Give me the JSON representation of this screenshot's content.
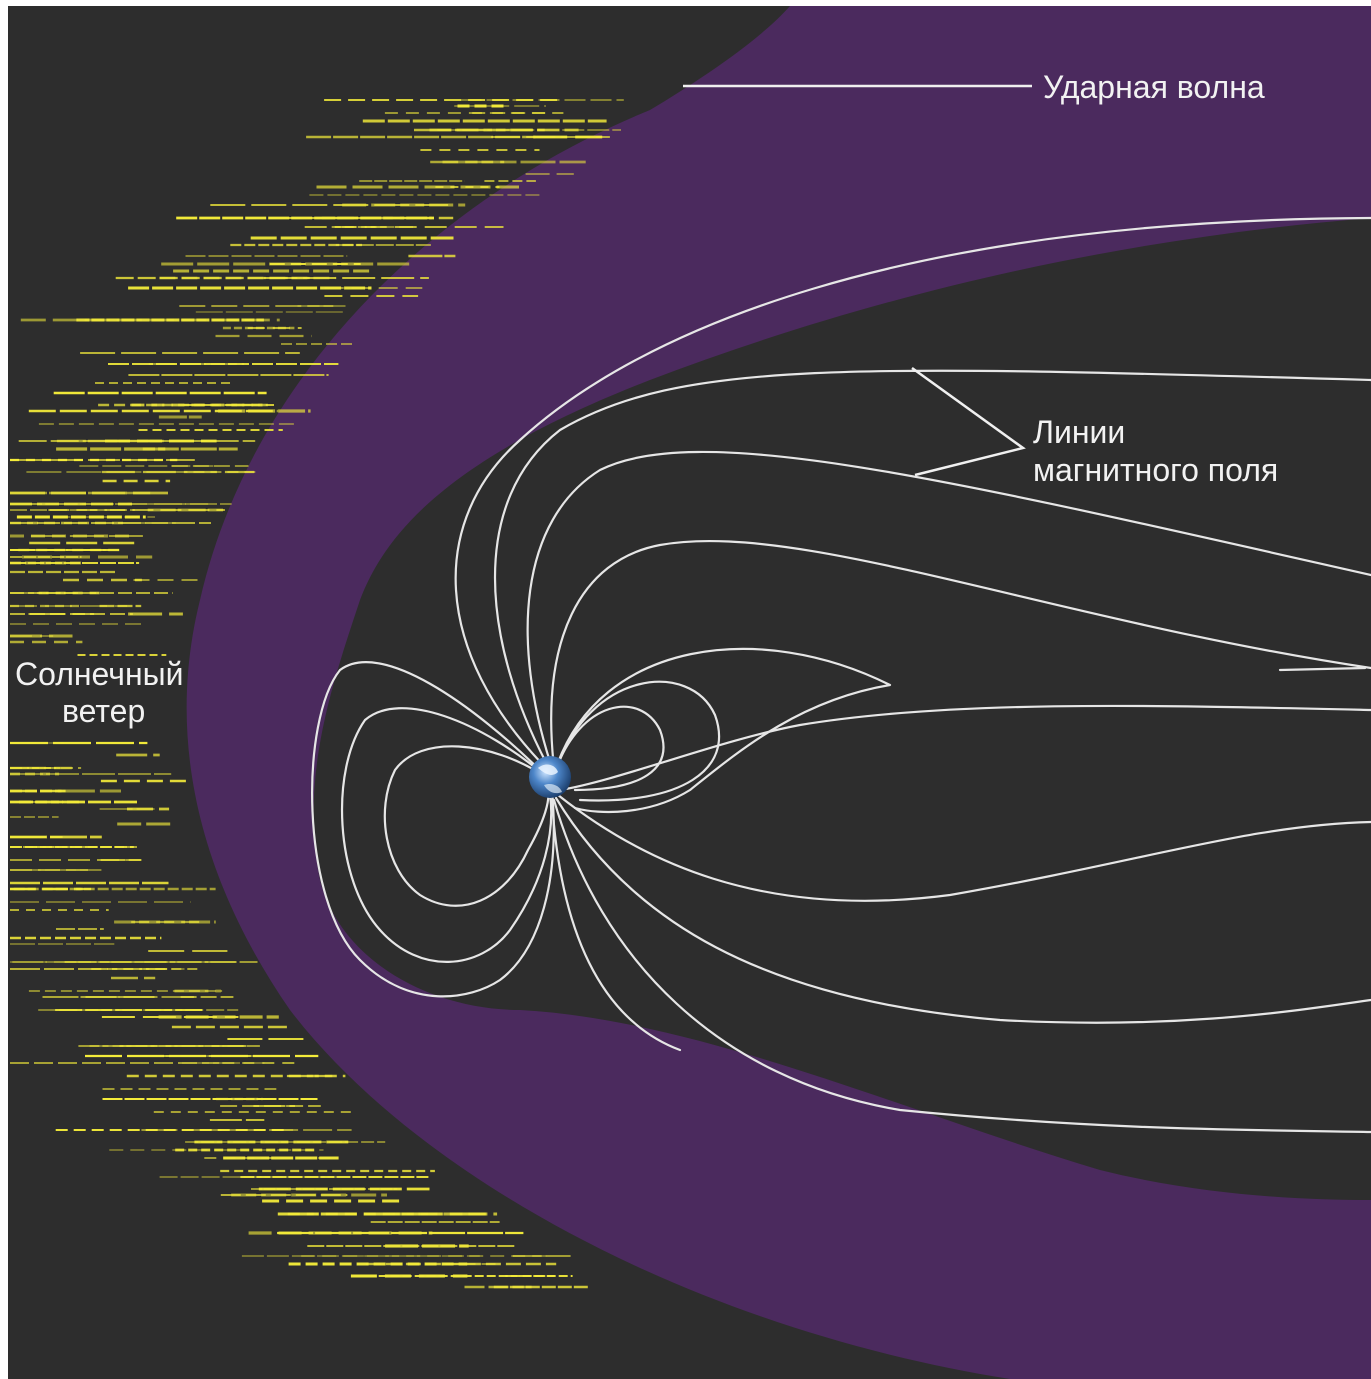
{
  "labels": {
    "shock_wave": "Ударная волна",
    "field_lines_1": "Линии",
    "field_lines_2": "магнитного поля",
    "solar_wind_1": "Солнечный",
    "solar_wind_2": "ветер"
  },
  "colors": {
    "space": "#2d2d2d",
    "magnetosheath": "#4b2a5e",
    "field_lines": "#e6e6e6",
    "solar_wind": "#f4ec3a",
    "text": "#f2f2f2"
  },
  "icons": {
    "earth": "earth-globe-icon"
  }
}
